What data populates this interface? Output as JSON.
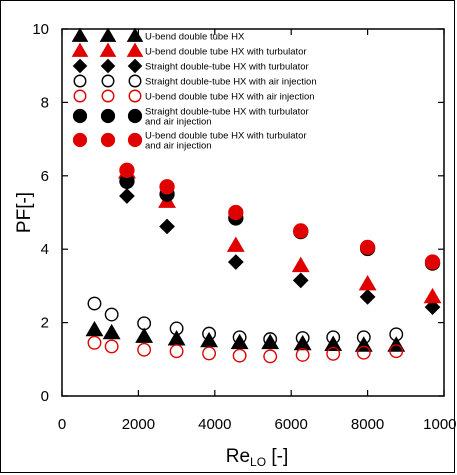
{
  "chart_data": {
    "type": "scatter",
    "xlabel_main": "Re",
    "xlabel_sub": "LO",
    "xlabel_unit": " [-]",
    "ylabel": "PF[-]",
    "xlim": [
      0,
      10000
    ],
    "ylim": [
      0,
      10
    ],
    "xticks": [
      0,
      2000,
      4000,
      6000,
      8000,
      10000
    ],
    "yticks": [
      0,
      2,
      4,
      6,
      8,
      10
    ],
    "grid": false,
    "legend_position": "top-left",
    "series": [
      {
        "name": "U-bend double tube HX",
        "marker": "triangle",
        "filled": true,
        "color": "#000000",
        "x": [
          850,
          1300,
          2150,
          3000,
          3850,
          4650,
          5450,
          6300,
          7100,
          7900,
          8750
        ],
        "y": [
          1.8,
          1.72,
          1.62,
          1.55,
          1.5,
          1.45,
          1.45,
          1.42,
          1.4,
          1.38,
          1.38
        ]
      },
      {
        "name": "U-bend double tube HX with turbulator",
        "marker": "triangle",
        "filled": true,
        "color": "#e00000",
        "x": [
          1700,
          2750,
          4550,
          6250,
          8000,
          9700
        ],
        "y": [
          6.1,
          5.3,
          4.1,
          3.55,
          3.05,
          2.7
        ]
      },
      {
        "name": "Straight double-tube HX with turbulator",
        "marker": "diamond",
        "filled": true,
        "color": "#000000",
        "x": [
          1700,
          2750,
          4550,
          6250,
          8000,
          9700
        ],
        "y": [
          5.45,
          4.62,
          3.65,
          3.15,
          2.7,
          2.42
        ]
      },
      {
        "name": "Straight double-tube HX with air injection",
        "marker": "circle",
        "filled": false,
        "color": "#000000",
        "x": [
          850,
          1300,
          2150,
          3000,
          3850,
          4650,
          5450,
          6300,
          7100,
          7900,
          8750
        ],
        "y": [
          2.52,
          2.22,
          1.98,
          1.84,
          1.7,
          1.6,
          1.55,
          1.58,
          1.6,
          1.6,
          1.68
        ]
      },
      {
        "name": "U-bend double tube HX with air injection",
        "marker": "circle",
        "filled": false,
        "color": "#e00000",
        "x": [
          850,
          1300,
          2150,
          3000,
          3850,
          4650,
          5450,
          6300,
          7100,
          7900,
          8750
        ],
        "y": [
          1.45,
          1.35,
          1.26,
          1.22,
          1.16,
          1.1,
          1.08,
          1.12,
          1.15,
          1.18,
          1.22
        ]
      },
      {
        "name": "Straight double-tube HX with turbulator and air injection",
        "marker": "circle",
        "filled": true,
        "color": "#000000",
        "x": [
          1700,
          2750,
          4550,
          6250,
          8000,
          9700
        ],
        "y": [
          5.85,
          5.5,
          4.85,
          4.48,
          4.02,
          3.62
        ]
      },
      {
        "name": "U-bend double tube HX with turbulator and air injection",
        "marker": "circle",
        "filled": true,
        "color": "#e00000",
        "x": [
          1700,
          2750,
          4550,
          6250,
          8000,
          9700
        ],
        "y": [
          6.15,
          5.7,
          5.0,
          4.5,
          4.05,
          3.65
        ]
      }
    ],
    "legend_lines": [
      [
        "U-bend double tube HX"
      ],
      [
        "U-bend double tube HX with turbulator"
      ],
      [
        "Straight double-tube HX with turbulator"
      ],
      [
        "Straight double-tube HX with air injection"
      ],
      [
        "U-bend double tube HX with air injection"
      ],
      [
        "Straight double-tube HX with turbulator",
        "and air injection"
      ],
      [
        "U-bend double tube HX with turbulator",
        "and air injection"
      ]
    ]
  }
}
